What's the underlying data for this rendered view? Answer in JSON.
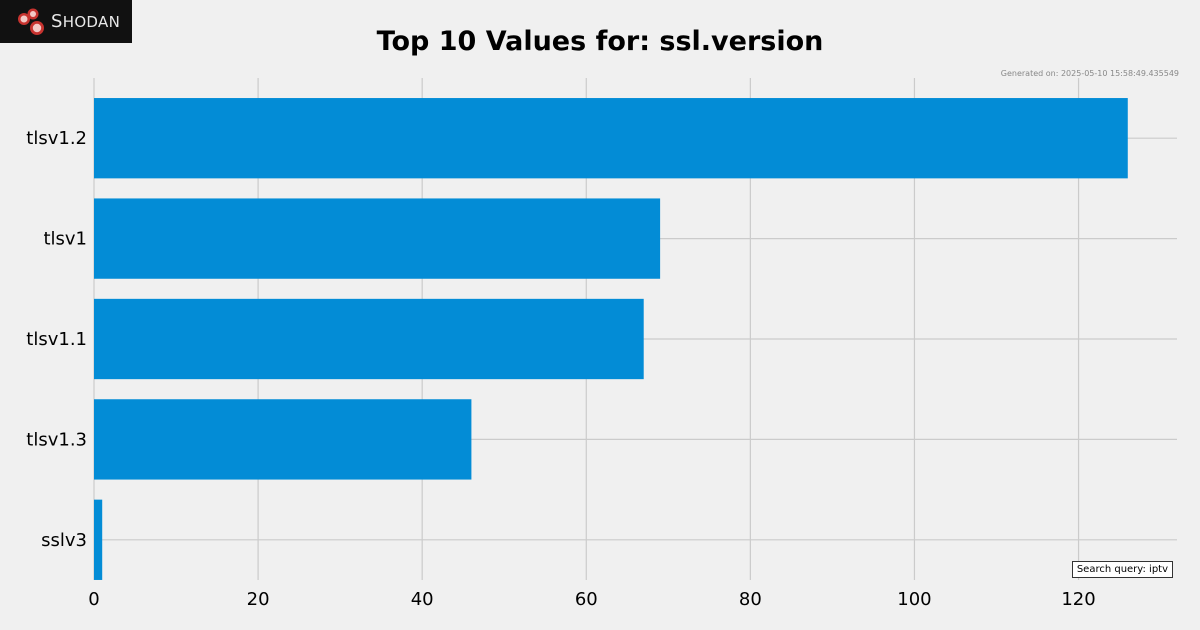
{
  "header": {
    "logo_text": "Shodan",
    "logo_initial": "S",
    "logo_rest": "HODAN",
    "generated": "Generated on: 2025-05-10 15:58:49.435549",
    "search_query": "Search query: iptv"
  },
  "chart_data": {
    "type": "bar",
    "orientation": "horizontal",
    "title": "Top 10 Values for: ssl.version",
    "categories": [
      "tlsv1.2",
      "tlsv1",
      "tlsv1.1",
      "tlsv1.3",
      "sslv3"
    ],
    "values": [
      126,
      69,
      67,
      46,
      1
    ],
    "xlim": [
      0,
      132
    ],
    "xticks": [
      0,
      20,
      40,
      60,
      80,
      100,
      120
    ],
    "xlabel": "",
    "ylabel": "",
    "grid": true,
    "bar_color": "#038cd6",
    "grid_color": "#cbcbcb",
    "background": "#f0f0f0"
  }
}
